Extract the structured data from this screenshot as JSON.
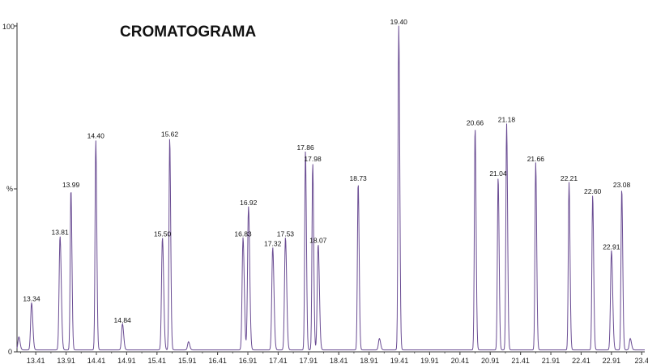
{
  "chart_data": {
    "type": "line",
    "title": "CROMATOGRAMA",
    "xlabel": "",
    "ylabel": "%",
    "xlim": [
      13.1,
      23.46
    ],
    "ylim": [
      0,
      100
    ],
    "y_ticks": [
      "0",
      "%",
      "100"
    ],
    "x_ticks": [
      13.41,
      13.91,
      14.41,
      14.91,
      15.41,
      15.91,
      16.41,
      16.91,
      17.41,
      17.91,
      18.41,
      18.91,
      19.41,
      19.91,
      20.41,
      20.91,
      21.41,
      21.91,
      22.41,
      22.91,
      23.41
    ],
    "x_tick_labels": [
      "13.41",
      "13.91",
      "14.41",
      "14.91",
      "15.41",
      "15.91",
      "16.41",
      "16.91",
      "17.41",
      "17.91",
      "18.41",
      "18.91",
      "19.41",
      "19.91",
      "20.41",
      "20.91",
      "21.41",
      "21.91",
      "22.41",
      "22.91",
      "23.4"
    ],
    "grid": false,
    "line_color": "#6a4c93",
    "peaks": [
      {
        "rt": 13.34,
        "label": "13.34",
        "intensity": 14.5
      },
      {
        "rt": 13.81,
        "label": "13.81",
        "intensity": 35
      },
      {
        "rt": 13.99,
        "label": "13.99",
        "intensity": 49.5
      },
      {
        "rt": 14.4,
        "label": "14.40",
        "intensity": 64.5
      },
      {
        "rt": 14.84,
        "label": "14.84",
        "intensity": 8
      },
      {
        "rt": 15.5,
        "label": "15.50",
        "intensity": 34.5
      },
      {
        "rt": 15.62,
        "label": "15.62",
        "intensity": 65
      },
      {
        "rt": 16.83,
        "label": "16.83",
        "intensity": 34.5
      },
      {
        "rt": 16.92,
        "label": "16.92",
        "intensity": 44
      },
      {
        "rt": 17.32,
        "label": "17.32",
        "intensity": 31.5
      },
      {
        "rt": 17.53,
        "label": "17.53",
        "intensity": 34.5
      },
      {
        "rt": 17.86,
        "label": "17.86",
        "intensity": 61
      },
      {
        "rt": 17.98,
        "label": "17.98",
        "intensity": 57.5
      },
      {
        "rt": 18.07,
        "label": "18.07",
        "intensity": 32.5
      },
      {
        "rt": 18.73,
        "label": "18.73",
        "intensity": 51.5
      },
      {
        "rt": 19.4,
        "label": "19.40",
        "intensity": 99.5
      },
      {
        "rt": 20.66,
        "label": "20.66",
        "intensity": 68.5
      },
      {
        "rt": 21.04,
        "label": "21.04",
        "intensity": 53
      },
      {
        "rt": 21.18,
        "label": "21.18",
        "intensity": 69.5
      },
      {
        "rt": 21.66,
        "label": "21.66",
        "intensity": 57.5
      },
      {
        "rt": 22.21,
        "label": "22.21",
        "intensity": 51.5
      },
      {
        "rt": 22.6,
        "label": "22.60",
        "intensity": 47.5
      },
      {
        "rt": 22.91,
        "label": "22.91",
        "intensity": 30.5
      },
      {
        "rt": 23.08,
        "label": "23.08",
        "intensity": 49.5
      }
    ],
    "minor_peaks": [
      {
        "rt": 13.13,
        "intensity": 4
      },
      {
        "rt": 15.93,
        "intensity": 2.5
      },
      {
        "rt": 19.08,
        "intensity": 3.5
      },
      {
        "rt": 23.22,
        "intensity": 3.5
      }
    ]
  }
}
